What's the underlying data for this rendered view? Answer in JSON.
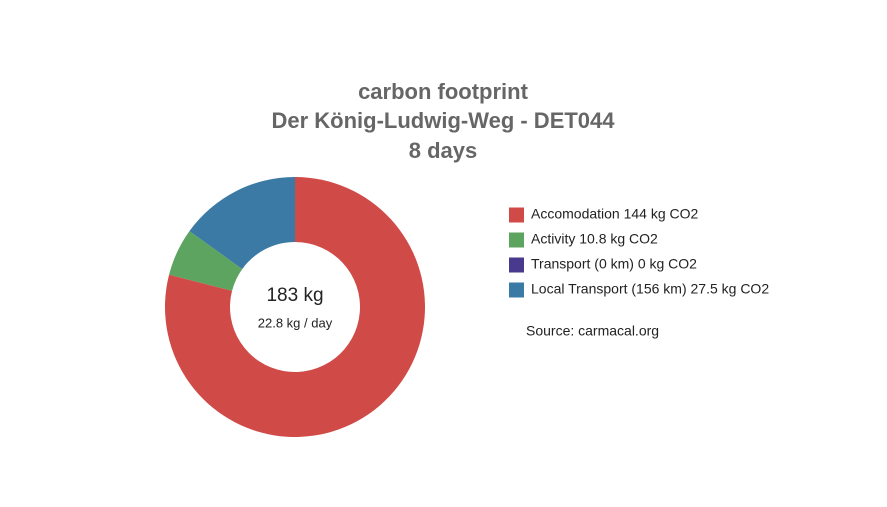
{
  "chart_data": {
    "type": "donut",
    "title": [
      "carbon footprint",
      "Der König-Ludwig-Weg - DET044",
      "8 days"
    ],
    "categories": [
      "Accomodation 144 kg CO2",
      "Activity 10.8 kg CO2",
      "Transport (0 km) 0 kg CO2",
      "Local Transport (156 km) 27.5 kg CO2"
    ],
    "values": [
      144,
      10.8,
      0,
      27.5
    ],
    "colors": [
      "#d04b48",
      "#5ca45f",
      "#4a3a8e",
      "#3b7aa5"
    ],
    "center_label": "183 kg",
    "center_sublabel": "22.8 kg / day",
    "source": "Source: carmacal.org",
    "legend": "right"
  }
}
